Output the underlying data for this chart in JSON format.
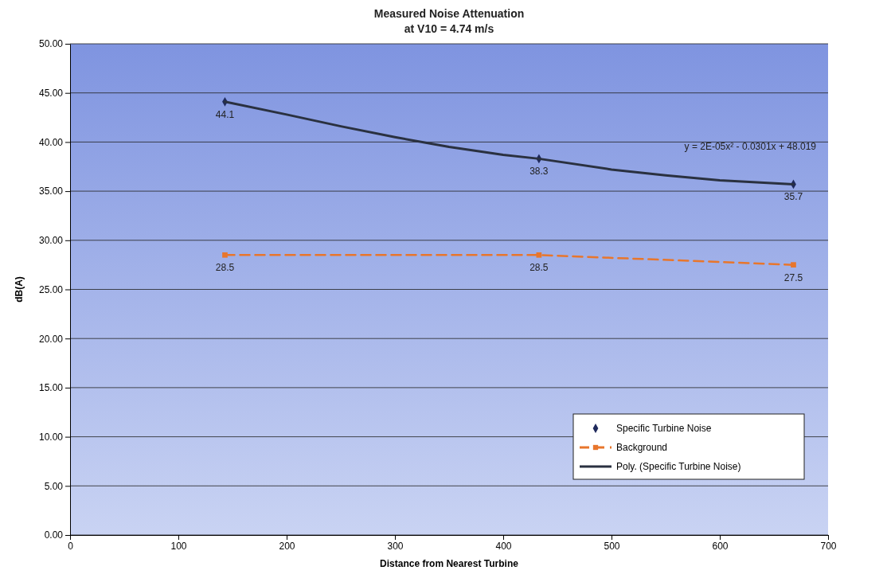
{
  "chart_data": {
    "type": "line",
    "title": "Measured Noise Attenuation",
    "subtitle": "at V10 = 4.74 m/s",
    "xlabel": "Distance from Nearest Turbine",
    "ylabel": "dB(A)",
    "xlim": [
      0,
      700
    ],
    "xticks": [
      0,
      100,
      200,
      300,
      400,
      500,
      600,
      700
    ],
    "ylim": [
      0,
      50
    ],
    "yticks": [
      {
        "value": 0,
        "label": "0.00"
      },
      {
        "value": 5,
        "label": "5.00"
      },
      {
        "value": 10,
        "label": "10.00"
      },
      {
        "value": 15,
        "label": "15.00"
      },
      {
        "value": 20,
        "label": "20.00"
      },
      {
        "value": 25,
        "label": "25.00"
      },
      {
        "value": 30,
        "label": "30.00"
      },
      {
        "value": 35,
        "label": "35.00"
      },
      {
        "value": 40,
        "label": "40.00"
      },
      {
        "value": 45,
        "label": "45.00"
      },
      {
        "value": 50,
        "label": "50.00"
      }
    ],
    "grid": "y",
    "legend": "bottom right",
    "annotations": [
      "y = 2E-05x² - 0.0301x + 48.019"
    ],
    "series": [
      {
        "name": "Specific Turbine Noise",
        "type": "scatter",
        "marker": "diamond",
        "color": "#1f2a5c",
        "x": [
          143,
          433,
          668
        ],
        "values": [
          44.1,
          38.3,
          35.7
        ],
        "value_labels": [
          "44.1",
          "38.3",
          "35.7"
        ]
      },
      {
        "name": "Background",
        "type": "line",
        "marker": "square",
        "line_style": "dashed",
        "color": "#e8762c",
        "x": [
          143,
          433,
          668
        ],
        "values": [
          28.5,
          28.5,
          27.5
        ],
        "value_labels": [
          "28.5",
          "28.5",
          "27.5"
        ]
      },
      {
        "name": "Poly. (Specific Turbine Noise)",
        "marker": "none",
        "line_style": "solid",
        "color": "#2a3140",
        "x": [
          143,
          200,
          250,
          300,
          350,
          400,
          433,
          500,
          550,
          600,
          668
        ],
        "values": [
          44.1,
          42.8,
          41.6,
          40.5,
          39.5,
          38.7,
          38.3,
          37.2,
          36.6,
          36.1,
          35.7
        ]
      }
    ]
  }
}
